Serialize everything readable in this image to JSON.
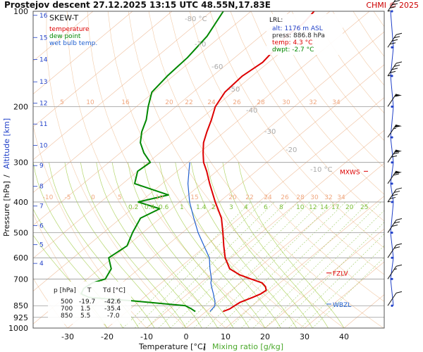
{
  "header": {
    "title": "Prostejov   descent   27.12.2025 13:15 UTC   48.55N,17.83E",
    "copyright": "CHMI © 2025"
  },
  "legend": {
    "heading": "SKEW-T",
    "items": [
      {
        "label": "temperature",
        "color": "#dd0000"
      },
      {
        "label": "dew point",
        "color": "#008800"
      },
      {
        "label": "wet bulb temp.",
        "color": "#1f5fd0"
      }
    ]
  },
  "lrl": {
    "heading": "LRL:",
    "rows": [
      {
        "text": "alt: 1176 m ASL",
        "color": "#1f3fc8"
      },
      {
        "text": "press: 886.8 hPa",
        "color": "#222222"
      },
      {
        "text": "temp: 4.3 °C",
        "color": "#dd0000"
      },
      {
        "text": "dwpt: -2.7 °C",
        "color": "#008800"
      }
    ]
  },
  "table": {
    "headers": [
      "p [hPa]",
      "T",
      "Td [°C]"
    ],
    "rows": [
      [
        "500",
        "-19.7",
        "-42.6"
      ],
      [
        "700",
        "1.5",
        "-35.4"
      ],
      [
        "850",
        "5.5",
        "-7.0"
      ]
    ]
  },
  "levels": {
    "mxws": "MXWS",
    "fzlv": "FZLV",
    "wbzl": "WBZL"
  },
  "axes": {
    "xlabel_temp": "Temperature [°C]",
    "xlabel_sep": "/",
    "xlabel_mix": "Mixing ratio [g/kg]",
    "ylabel_pressure": "Pressure [hPa]",
    "ylabel_sep": "/",
    "ylabel_alt": "Altitude [km]"
  },
  "colors": {
    "temperature": "#dd0000",
    "dewpoint": "#008800",
    "wetbulb": "#1f5fd0",
    "isotherm": "#e8a070",
    "dry_adiabat": "#e8a060",
    "moist_adiabat": "#9bc83a",
    "mixing_ratio": "#88c040",
    "isobar": "#999999",
    "altitude": "#1f3fc8"
  },
  "chart_data": {
    "type": "line",
    "title": "Prostejov   descent   27.12.2025 13:15 UTC   48.55N,17.83E",
    "xlabel": "Temperature [°C]",
    "ylabel": "Pressure [hPa]",
    "xlim": [
      -35,
      45
    ],
    "ylim": [
      1000,
      100
    ],
    "log_y": true,
    "x_ticks": [
      "-30",
      "-20",
      "-10",
      "0",
      "10",
      "20",
      "30",
      "40"
    ],
    "pressure_ticks": [
      "100",
      "200",
      "300",
      "400",
      "500",
      "600",
      "700",
      "850",
      "925",
      "1000"
    ],
    "altitude_ticks": [
      "4",
      "5",
      "6",
      "7",
      "8",
      "9",
      "10",
      "11",
      "12",
      "13",
      "14",
      "15",
      "16"
    ],
    "isotherm_labels": [
      "-80 °C",
      "-70",
      "-60",
      "-50",
      "-40",
      "-30",
      "-20",
      "-10 °C"
    ],
    "mixing_labels_low": [
      "0.2",
      "0.4",
      "0.6",
      "1",
      "1.4",
      "2",
      "3",
      "4",
      "6",
      "8",
      "10",
      "12",
      "14",
      "17",
      "20",
      "25"
    ],
    "mixing_labels_mid": [
      "-10",
      "-5",
      "0",
      "5",
      "10",
      "15",
      "20",
      "22",
      "24",
      "26",
      "28",
      "30",
      "32",
      "34"
    ],
    "mixing_labels_high": [
      "5",
      "10",
      "16",
      "20",
      "22",
      "24",
      "26",
      "28",
      "30",
      "32",
      "34"
    ],
    "grid": true,
    "series": [
      {
        "name": "temperature",
        "pressure": [
          886.8,
          870,
          850,
          830,
          800,
          780,
          760,
          740,
          720,
          700,
          680,
          650,
          600,
          550,
          500,
          450,
          400,
          350,
          320,
          300,
          280,
          260,
          240,
          220,
          200,
          180,
          160,
          145,
          130,
          120,
          110,
          100
        ],
        "values": [
          4.3,
          5.2,
          5.5,
          5.8,
          7.5,
          8.5,
          8.8,
          7.5,
          5.5,
          1.5,
          -2.5,
          -7.0,
          -11.5,
          -15.5,
          -19.7,
          -24.5,
          -31.0,
          -38.0,
          -42.5,
          -46.0,
          -49.0,
          -52.0,
          -54.5,
          -57.0,
          -60.0,
          -62.0,
          -62.5,
          -61.5,
          -62.5,
          -63.5,
          -63.0,
          -64.0
        ]
      },
      {
        "name": "dew point",
        "pressure": [
          886.8,
          870,
          850,
          820,
          800,
          780,
          750,
          720,
          700,
          650,
          600,
          550,
          500,
          450,
          420,
          400,
          380,
          350,
          320,
          300,
          280,
          260,
          240,
          220,
          200,
          180,
          160,
          140,
          120,
          100
        ],
        "values": [
          -2.7,
          -4.5,
          -7.0,
          -22.0,
          -34.0,
          -37.0,
          -38.0,
          -37.5,
          -35.4,
          -37.0,
          -41.0,
          -40.0,
          -42.6,
          -45.0,
          -43.0,
          -50.5,
          -45.0,
          -57.0,
          -60.0,
          -59.5,
          -64.0,
          -68.0,
          -71.0,
          -73.5,
          -77.0,
          -80.5,
          -81.5,
          -82.0,
          -83.5,
          -87.0
        ]
      },
      {
        "name": "wet bulb temp.",
        "pressure": [
          886.8,
          870,
          850,
          820,
          800,
          780,
          750,
          720,
          700,
          650,
          600,
          550,
          500,
          450,
          400,
          350,
          320,
          300
        ],
        "values": [
          1.0,
          0.8,
          0.5,
          -1.0,
          -2.3,
          -3.5,
          -5.5,
          -7.5,
          -8.5,
          -12.0,
          -15.5,
          -20.5,
          -26.0,
          -31.5,
          -37.5,
          -43.5,
          -47.0,
          -49.5
        ]
      }
    ],
    "wind": {
      "note": "wind barbs along right edge",
      "pressure": [
        100,
        130,
        160,
        200,
        250,
        300,
        350,
        400,
        500,
        600,
        700,
        850
      ],
      "speed_kt": [
        45,
        40,
        45,
        50,
        55,
        70,
        60,
        45,
        30,
        20,
        15,
        10
      ],
      "dir_deg": [
        290,
        280,
        280,
        270,
        270,
        270,
        270,
        270,
        260,
        250,
        240,
        230
      ]
    }
  }
}
